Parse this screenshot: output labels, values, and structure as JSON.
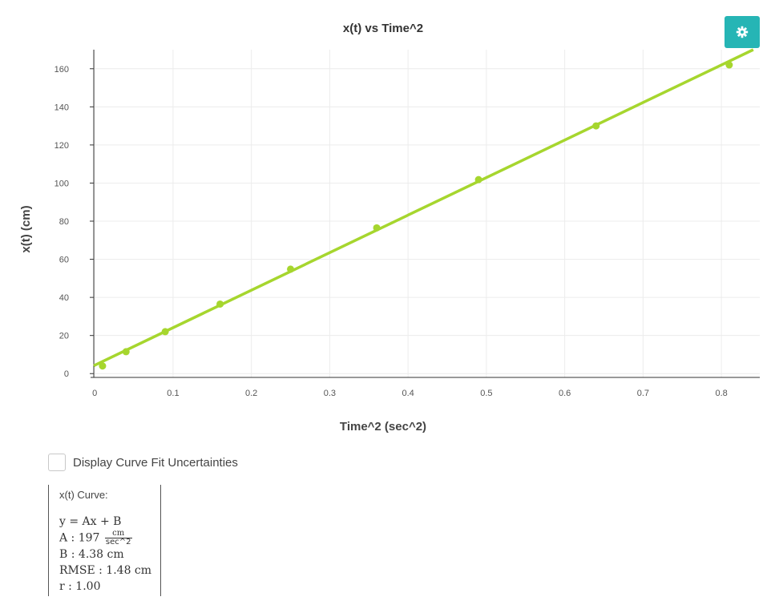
{
  "chart_data": {
    "type": "scatter",
    "title": "x(t) vs Time^2",
    "xlabel": "Time^2 (sec^2)",
    "ylabel": "x(t) (cm)",
    "xlim": [
      -0.0012,
      0.849
    ],
    "ylim": [
      -2,
      170
    ],
    "xticks": [
      0,
      0.1,
      0.2,
      0.3,
      0.4,
      0.5,
      0.6,
      0.7,
      0.8
    ],
    "yticks": [
      0,
      20,
      40,
      60,
      80,
      100,
      120,
      140,
      160
    ],
    "grid": true,
    "series": [
      {
        "points": [
          {
            "x": 0.01,
            "y": 4
          },
          {
            "x": 0.04,
            "y": 11.5
          },
          {
            "x": 0.09,
            "y": 22
          },
          {
            "x": 0.16,
            "y": 36.5
          },
          {
            "x": 0.25,
            "y": 54.8
          },
          {
            "x": 0.36,
            "y": 76.5
          },
          {
            "x": 0.49,
            "y": 101.8
          },
          {
            "x": 0.64,
            "y": 130
          },
          {
            "x": 0.81,
            "y": 162
          }
        ]
      }
    ],
    "fit_line": {
      "slope": 197,
      "intercept": 4.38
    },
    "color": "#a6d62e"
  },
  "settings_icon": "gear-icon",
  "accent_color": "#26b5b5",
  "fit_toggle": {
    "label": "Display Curve Fit Uncertainties",
    "checked": false
  },
  "curve_fit": {
    "title": "x(t) Curve:",
    "equation": "y = Ax + B",
    "a_label": "A : 197",
    "a_unit_num": "cm",
    "a_unit_den": "sec^2",
    "b_line": "B : 4.38 cm",
    "rmse_line": "RMSE : 1.48 cm",
    "r_line": "r : 1.00"
  }
}
